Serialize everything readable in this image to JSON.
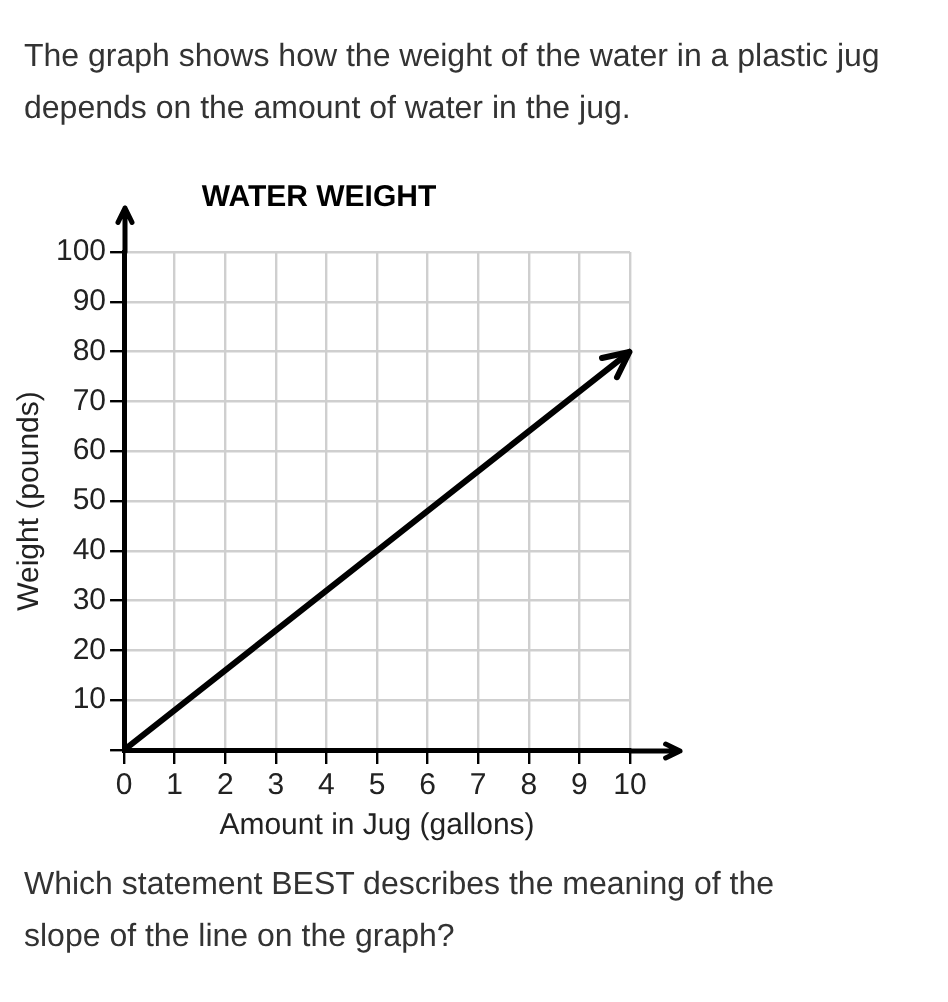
{
  "chart_data": {
    "type": "line",
    "subtitle": "The graph shows how the weight of the water in a plastic jug depends on the amount of water in the jug.",
    "title": "WATER WEIGHT",
    "xlabel": "Amount in Jug (gallons)",
    "ylabel": "Weight (pounds)",
    "x": [
      0,
      10
    ],
    "series": [
      {
        "color": "#000000",
        "values": [
          0,
          80
        ]
      }
    ],
    "xlim": [
      0,
      10
    ],
    "xticks": [
      0,
      1,
      2,
      3,
      4,
      5,
      6,
      7,
      8,
      9,
      10
    ],
    "ylim": [
      0,
      100
    ],
    "yticks": [
      {
        "value": 0,
        "label": null
      },
      10,
      20,
      30,
      40,
      50,
      60,
      70,
      80,
      90,
      100
    ],
    "grid": true,
    "legend": false,
    "marker": "none",
    "line_style": "solid",
    "annotations": [
      "Which statement BEST describes the meaning of the slope of the line on the graph?"
    ]
  }
}
